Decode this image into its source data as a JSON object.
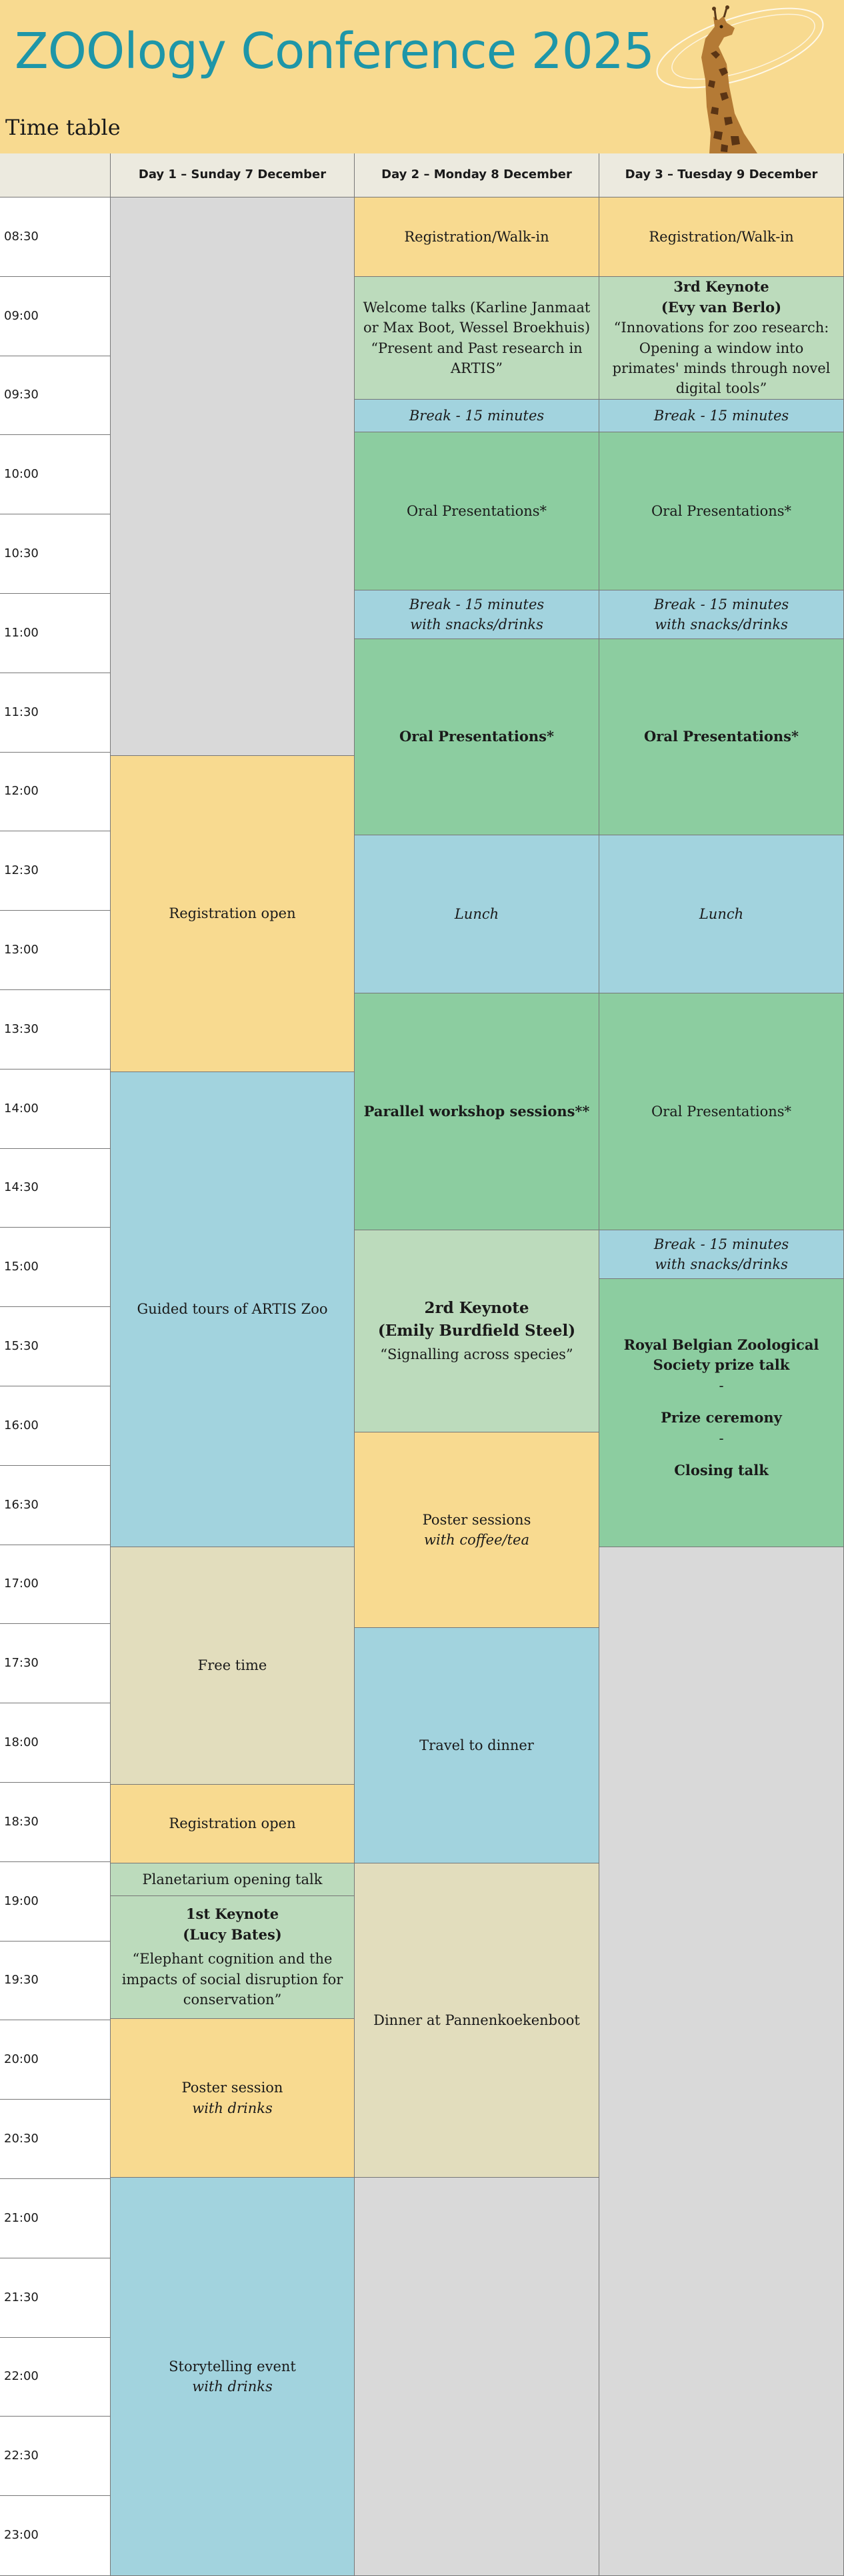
{
  "header": {
    "title": "ZOOlogy Conference 2025",
    "subtitle": "Time table"
  },
  "columns": {
    "day1": "Day 1 – Sunday 7 December",
    "day2": "Day 2 – Monday 8 December",
    "day3": "Day 3 – Tuesday 9 December"
  },
  "times": [
    "08:30",
    "09:00",
    "09:30",
    "10:00",
    "10:30",
    "11:00",
    "11:30",
    "12:00",
    "12:30",
    "13:00",
    "13:30",
    "14:00",
    "14:30",
    "15:00",
    "15:30",
    "16:00",
    "16:30",
    "17:00",
    "17:30",
    "18:00",
    "18:30",
    "19:00",
    "19:30",
    "20:00",
    "20:30",
    "21:00",
    "21:30",
    "22:00",
    "22:30",
    "23:00"
  ],
  "day1": {
    "registration_open": "Registration open",
    "guided_tours": "Guided tours of ARTIS Zoo",
    "free_time": "Free time",
    "registration_open_2": "Registration open",
    "planetarium": "Planetarium opening talk",
    "keynote1_title": "1st Keynote",
    "keynote1_speaker": "(Lucy Bates)",
    "keynote1_talk": "“Elephant cognition and the impacts of social disruption for conservation”",
    "poster_session": "Poster session",
    "poster_session_note": "with drinks",
    "storytelling": "Storytelling event",
    "storytelling_note": "with drinks"
  },
  "day2": {
    "registration": "Registration/Walk-in",
    "welcome": "Welcome talks (Karline Janmaat or Max Boot, Wessel Broekhuis)",
    "welcome_talk": "“Present and Past research in ARTIS”",
    "break1": "Break - 15 minutes",
    "oral1": "Oral Presentations*",
    "break2": "Break - 15 minutes",
    "break2_note": "with snacks/drinks",
    "oral2": "Oral Presentations*",
    "lunch": "Lunch",
    "workshops": "Parallel workshop sessions**",
    "keynote2_title": "2rd Keynote",
    "keynote2_speaker": "(Emily Burdfield Steel)",
    "keynote2_talk": "“Signalling across species”",
    "poster_sessions": "Poster sessions",
    "poster_sessions_note": "with coffee/tea",
    "travel": "Travel to dinner",
    "dinner": "Dinner at Pannenkoekenboot"
  },
  "day3": {
    "registration": "Registration/Walk-in",
    "keynote3_title": "3rd Keynote",
    "keynote3_speaker": "(Evy van Berlo)",
    "keynote3_talk": "“Innovations for zoo research: Opening a window into primates' minds through novel digital tools”",
    "break1": "Break - 15 minutes",
    "oral1": "Oral Presentations*",
    "break2": "Break - 15 minutes",
    "break2_note": "with snacks/drinks",
    "oral2": "Oral Presentations*",
    "lunch": "Lunch",
    "oral3": "Oral Presentations*",
    "break3": "Break - 15 minutes",
    "break3_note": "with snacks/drinks",
    "prize_talk": "Royal Belgian Zoological Society prize talk",
    "sep1": "-",
    "prize_ceremony": "Prize ceremony",
    "sep2": "-",
    "closing": "Closing talk"
  },
  "colors": {
    "yellow": "#f8da90",
    "light_green": "#bcdbbc",
    "green": "#8ccda0",
    "blue": "#a2d3de",
    "grey": "#d9d9d9",
    "beige": "#e2ddbd",
    "title_teal": "#1e96a8"
  }
}
